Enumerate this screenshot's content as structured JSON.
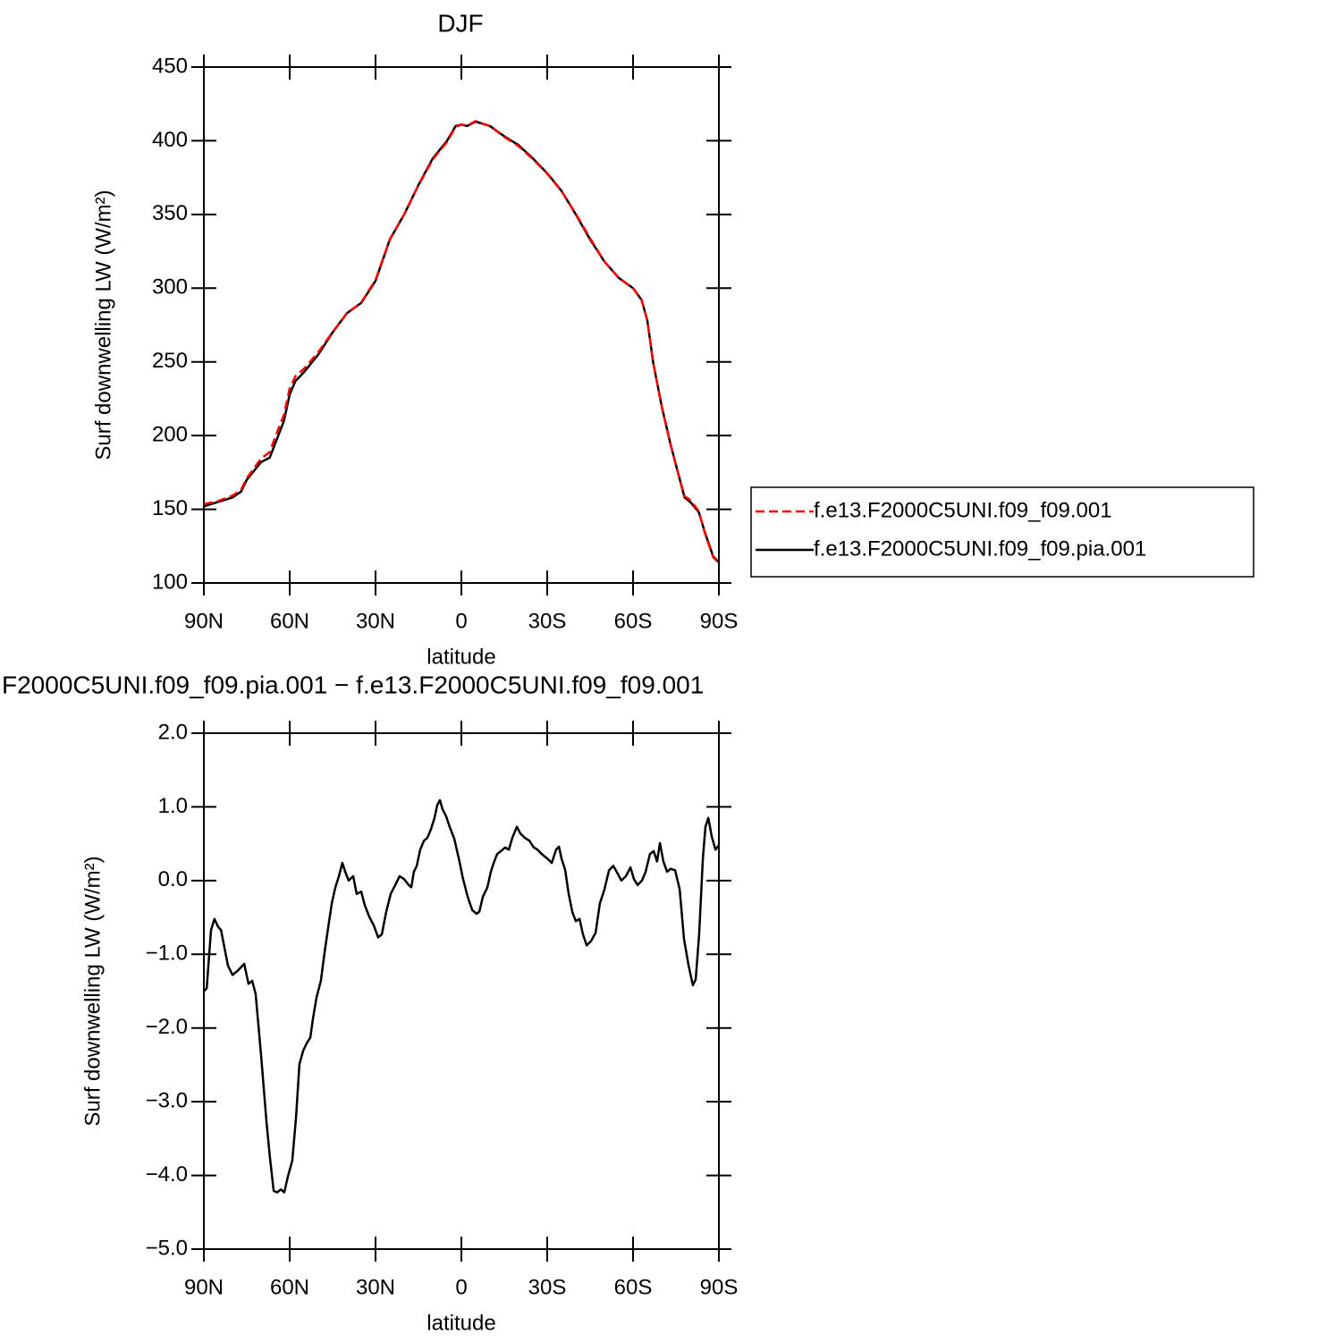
{
  "chart_data": [
    {
      "type": "line",
      "title": "DJF",
      "xlabel": "latitude",
      "ylabel": "Surf downwelling LW (W/m²)",
      "x": [
        90,
        85,
        80,
        77,
        75,
        70,
        67,
        65,
        62,
        60,
        58,
        55,
        50,
        45,
        40,
        35,
        30,
        25,
        20,
        15,
        10,
        5,
        2,
        0,
        -2,
        -5,
        -10,
        -15,
        -20,
        -25,
        -30,
        -35,
        -40,
        -45,
        -50,
        -55,
        -60,
        -63,
        -65,
        -67,
        -70,
        -73,
        -75,
        -78,
        -80,
        -83,
        -85,
        -88,
        -90
      ],
      "series": [
        {
          "name": "f.e13.F2000C5UNI.f09_f09.001",
          "color": "#ff0000",
          "dash": "dashed",
          "values": [
            153.5,
            155.6,
            159.3,
            163.2,
            171.1,
            184.4,
            188.8,
            199.2,
            214.2,
            232,
            240.2,
            245.3,
            256.6,
            270.3,
            283,
            290.2,
            305.6,
            333.2,
            350,
            369.7,
            387.3,
            399.2,
            409.5,
            411,
            410.2,
            413.4,
            409.9,
            402.6,
            396.3,
            387.5,
            377.7,
            365.7,
            350.5,
            333.8,
            318.1,
            306.9,
            300,
            292,
            277.8,
            249.6,
            219.7,
            194.8,
            179.9,
            158.8,
            156.3,
            148.7,
            134.4,
            117.5,
            113.5
          ]
        },
        {
          "name": "f.e13.F2000C5UNI.f09_f09.pia.001",
          "color": "#000000",
          "dash": "solid",
          "values": [
            152,
            155,
            158,
            162,
            170,
            182,
            185,
            195,
            210,
            228,
            237,
            243,
            255,
            270,
            283,
            290,
            305,
            333,
            350,
            370,
            388,
            400,
            410,
            411,
            410,
            413,
            410,
            403,
            397,
            388,
            378,
            366,
            350,
            333,
            318,
            307,
            300,
            292,
            278,
            250,
            220,
            195,
            180,
            158,
            155,
            148,
            135,
            118,
            114
          ]
        }
      ],
      "xlim": [
        90,
        -90
      ],
      "xticks": [
        {
          "value": 90,
          "label": "90N"
        },
        {
          "value": 60,
          "label": "60N"
        },
        {
          "value": 30,
          "label": "30N"
        },
        0,
        {
          "value": -30,
          "label": "30S"
        },
        {
          "value": -60,
          "label": "60S"
        },
        {
          "value": -90,
          "label": "90S"
        }
      ],
      "ylim": [
        100,
        450
      ],
      "yticks": [
        100,
        150,
        200,
        250,
        300,
        350,
        400,
        450
      ],
      "legend": "right"
    },
    {
      "type": "line",
      "title": "F2000C5UNI.f09_f09.pia.001 − f.e13.F2000C5UNI.f09_f09.001",
      "xlabel": "latitude",
      "ylabel": "Surf downwelling LW (W/m²)",
      "x": [
        90,
        89,
        87.5,
        86.3,
        85,
        84,
        82.8,
        81.6,
        80,
        78.1,
        75.9,
        74.4,
        73.1,
        71.9,
        70,
        68.1,
        66.9,
        65.6,
        64.4,
        63.1,
        61.9,
        60.6,
        59.1,
        57.8,
        56.6,
        55.3,
        54.1,
        52.8,
        51.9,
        50.6,
        49.1,
        47.8,
        46.6,
        45.3,
        44.1,
        42.8,
        41.6,
        40.6,
        39.4,
        37.8,
        36.6,
        35,
        33.8,
        32.2,
        30.6,
        29.1,
        27.8,
        26.3,
        24.7,
        23.1,
        21.6,
        20,
        18.4,
        17.5,
        16.6,
        15.6,
        14.4,
        13.1,
        11.9,
        10.6,
        9.4,
        8.4,
        7.5,
        6.6,
        5.3,
        4.1,
        2.5,
        0.9,
        -0.6,
        -2.2,
        -3.8,
        -5.3,
        -6.3,
        -7.5,
        -9.1,
        -10.3,
        -11.3,
        -12.5,
        -13.8,
        -15.3,
        -16.6,
        -17.8,
        -19.4,
        -20.6,
        -22.2,
        -23.8,
        -25.3,
        -26.6,
        -28.1,
        -30,
        -31.6,
        -33.1,
        -34.1,
        -35,
        -36.3,
        -37.5,
        -38.8,
        -40,
        -41.3,
        -42.5,
        -43.8,
        -45.3,
        -46.9,
        -48.4,
        -50,
        -51.6,
        -53.1,
        -54.7,
        -55.9,
        -57.5,
        -59.1,
        -60.3,
        -61.6,
        -63.1,
        -64.4,
        -65.9,
        -67.2,
        -68.4,
        -69.4,
        -70.6,
        -71.9,
        -73.1,
        -74.7,
        -76.3,
        -77.8,
        -79.4,
        -80.9,
        -81.9,
        -83.1,
        -84.4,
        -85.3,
        -86.3,
        -87.5,
        -88.8,
        -90
      ],
      "series": [
        {
          "color": "#000000",
          "dash": "solid",
          "values": [
            -1.5,
            -1.46,
            -0.67,
            -0.52,
            -0.63,
            -0.67,
            -0.91,
            -1.15,
            -1.28,
            -1.22,
            -1.13,
            -1.4,
            -1.36,
            -1.54,
            -2.37,
            -3.28,
            -3.76,
            -4.21,
            -4.23,
            -4.19,
            -4.23,
            -4.01,
            -3.8,
            -3.22,
            -2.49,
            -2.31,
            -2.21,
            -2.13,
            -1.88,
            -1.58,
            -1.36,
            -0.97,
            -0.65,
            -0.31,
            -0.1,
            0.06,
            0.24,
            0.12,
            0,
            0.06,
            -0.18,
            -0.15,
            -0.33,
            -0.49,
            -0.61,
            -0.77,
            -0.73,
            -0.43,
            -0.18,
            -0.06,
            0.06,
            0.02,
            -0.06,
            -0.09,
            0.12,
            0.2,
            0.42,
            0.54,
            0.58,
            0.7,
            0.85,
            1.03,
            1.09,
            0.97,
            0.87,
            0.73,
            0.57,
            0.3,
            0.02,
            -0.22,
            -0.4,
            -0.45,
            -0.42,
            -0.22,
            -0.09,
            0.12,
            0.24,
            0.36,
            0.4,
            0.45,
            0.42,
            0.58,
            0.73,
            0.64,
            0.58,
            0.54,
            0.45,
            0.42,
            0.36,
            0.3,
            0.24,
            0.42,
            0.46,
            0.3,
            0.14,
            -0.18,
            -0.43,
            -0.55,
            -0.52,
            -0.73,
            -0.88,
            -0.82,
            -0.71,
            -0.31,
            -0.12,
            0.14,
            0.2,
            0.09,
            0,
            0.06,
            0.18,
            0.02,
            -0.06,
            0,
            0.12,
            0.36,
            0.4,
            0.26,
            0.51,
            0.26,
            0.12,
            0.16,
            0.14,
            -0.12,
            -0.79,
            -1.15,
            -1.42,
            -1.34,
            -0.73,
            0.3,
            0.73,
            0.85,
            0.6,
            0.42,
            0.48
          ]
        }
      ],
      "xlim": [
        90,
        -90
      ],
      "xticks": [
        {
          "value": 90,
          "label": "90N"
        },
        {
          "value": 60,
          "label": "60N"
        },
        {
          "value": 30,
          "label": "30N"
        },
        0,
        {
          "value": -30,
          "label": "30S"
        },
        {
          "value": -60,
          "label": "60S"
        },
        {
          "value": -90,
          "label": "90S"
        }
      ],
      "ylim": [
        -5,
        2
      ],
      "yticks": [
        {
          "value": -5,
          "label": "−5.0"
        },
        {
          "value": -4,
          "label": "−4.0"
        },
        {
          "value": -3,
          "label": "−3.0"
        },
        {
          "value": -2,
          "label": "−2.0"
        },
        {
          "value": -1,
          "label": "−1.0"
        },
        {
          "value": 0,
          "label": "0.0"
        },
        {
          "value": 1,
          "label": "1.0"
        },
        {
          "value": 2,
          "label": "2.0"
        }
      ]
    }
  ]
}
